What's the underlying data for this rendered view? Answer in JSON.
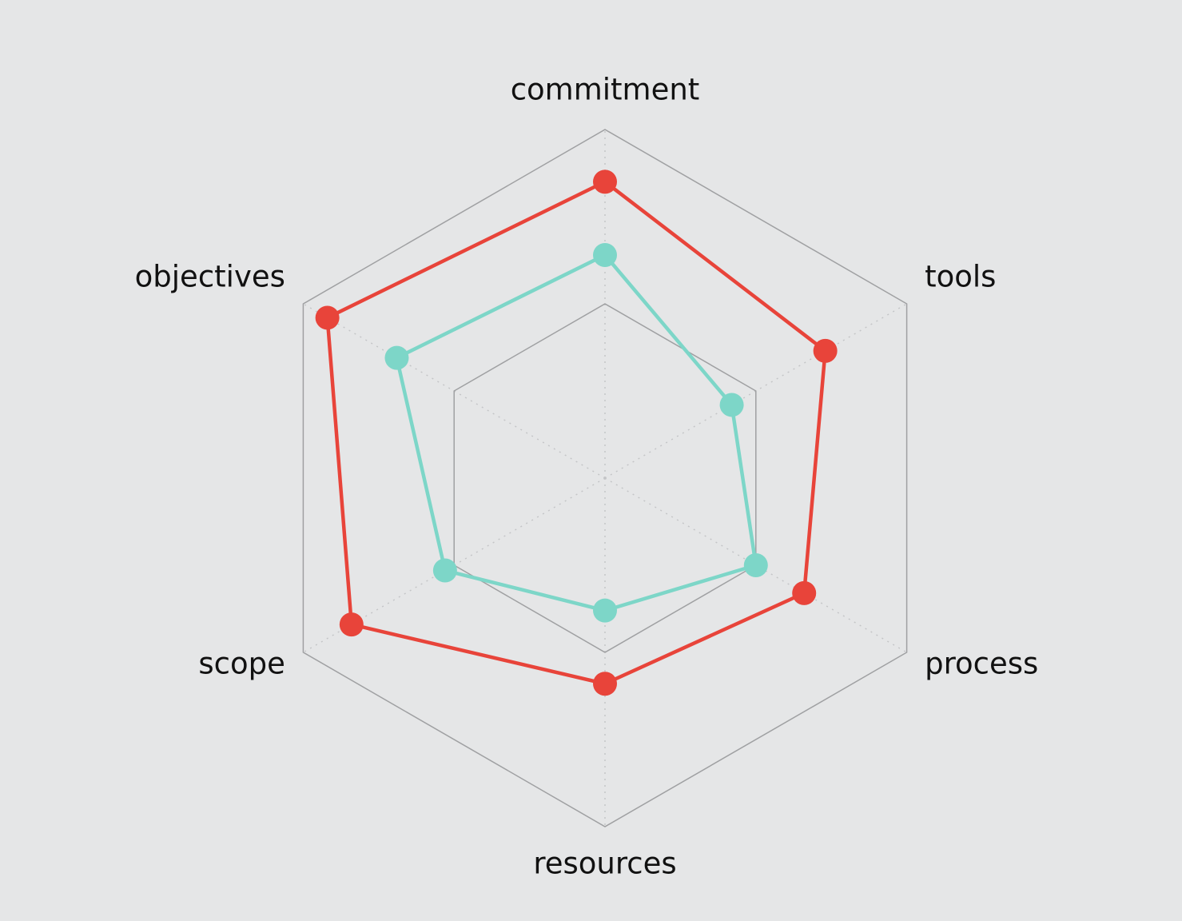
{
  "chart_data": {
    "type": "radar",
    "categories": [
      "commitment",
      "tools",
      "process",
      "resources",
      "scope",
      "objectives"
    ],
    "ylim": [
      0,
      100
    ],
    "yticks": [
      50,
      100
    ],
    "grid": true,
    "series": [
      {
        "color": "#e8443a",
        "values": [
          85,
          73,
          66,
          59,
          84,
          92
        ]
      },
      {
        "color": "#7dd6c8",
        "values": [
          64,
          42,
          50,
          38,
          53,
          69
        ]
      }
    ]
  }
}
